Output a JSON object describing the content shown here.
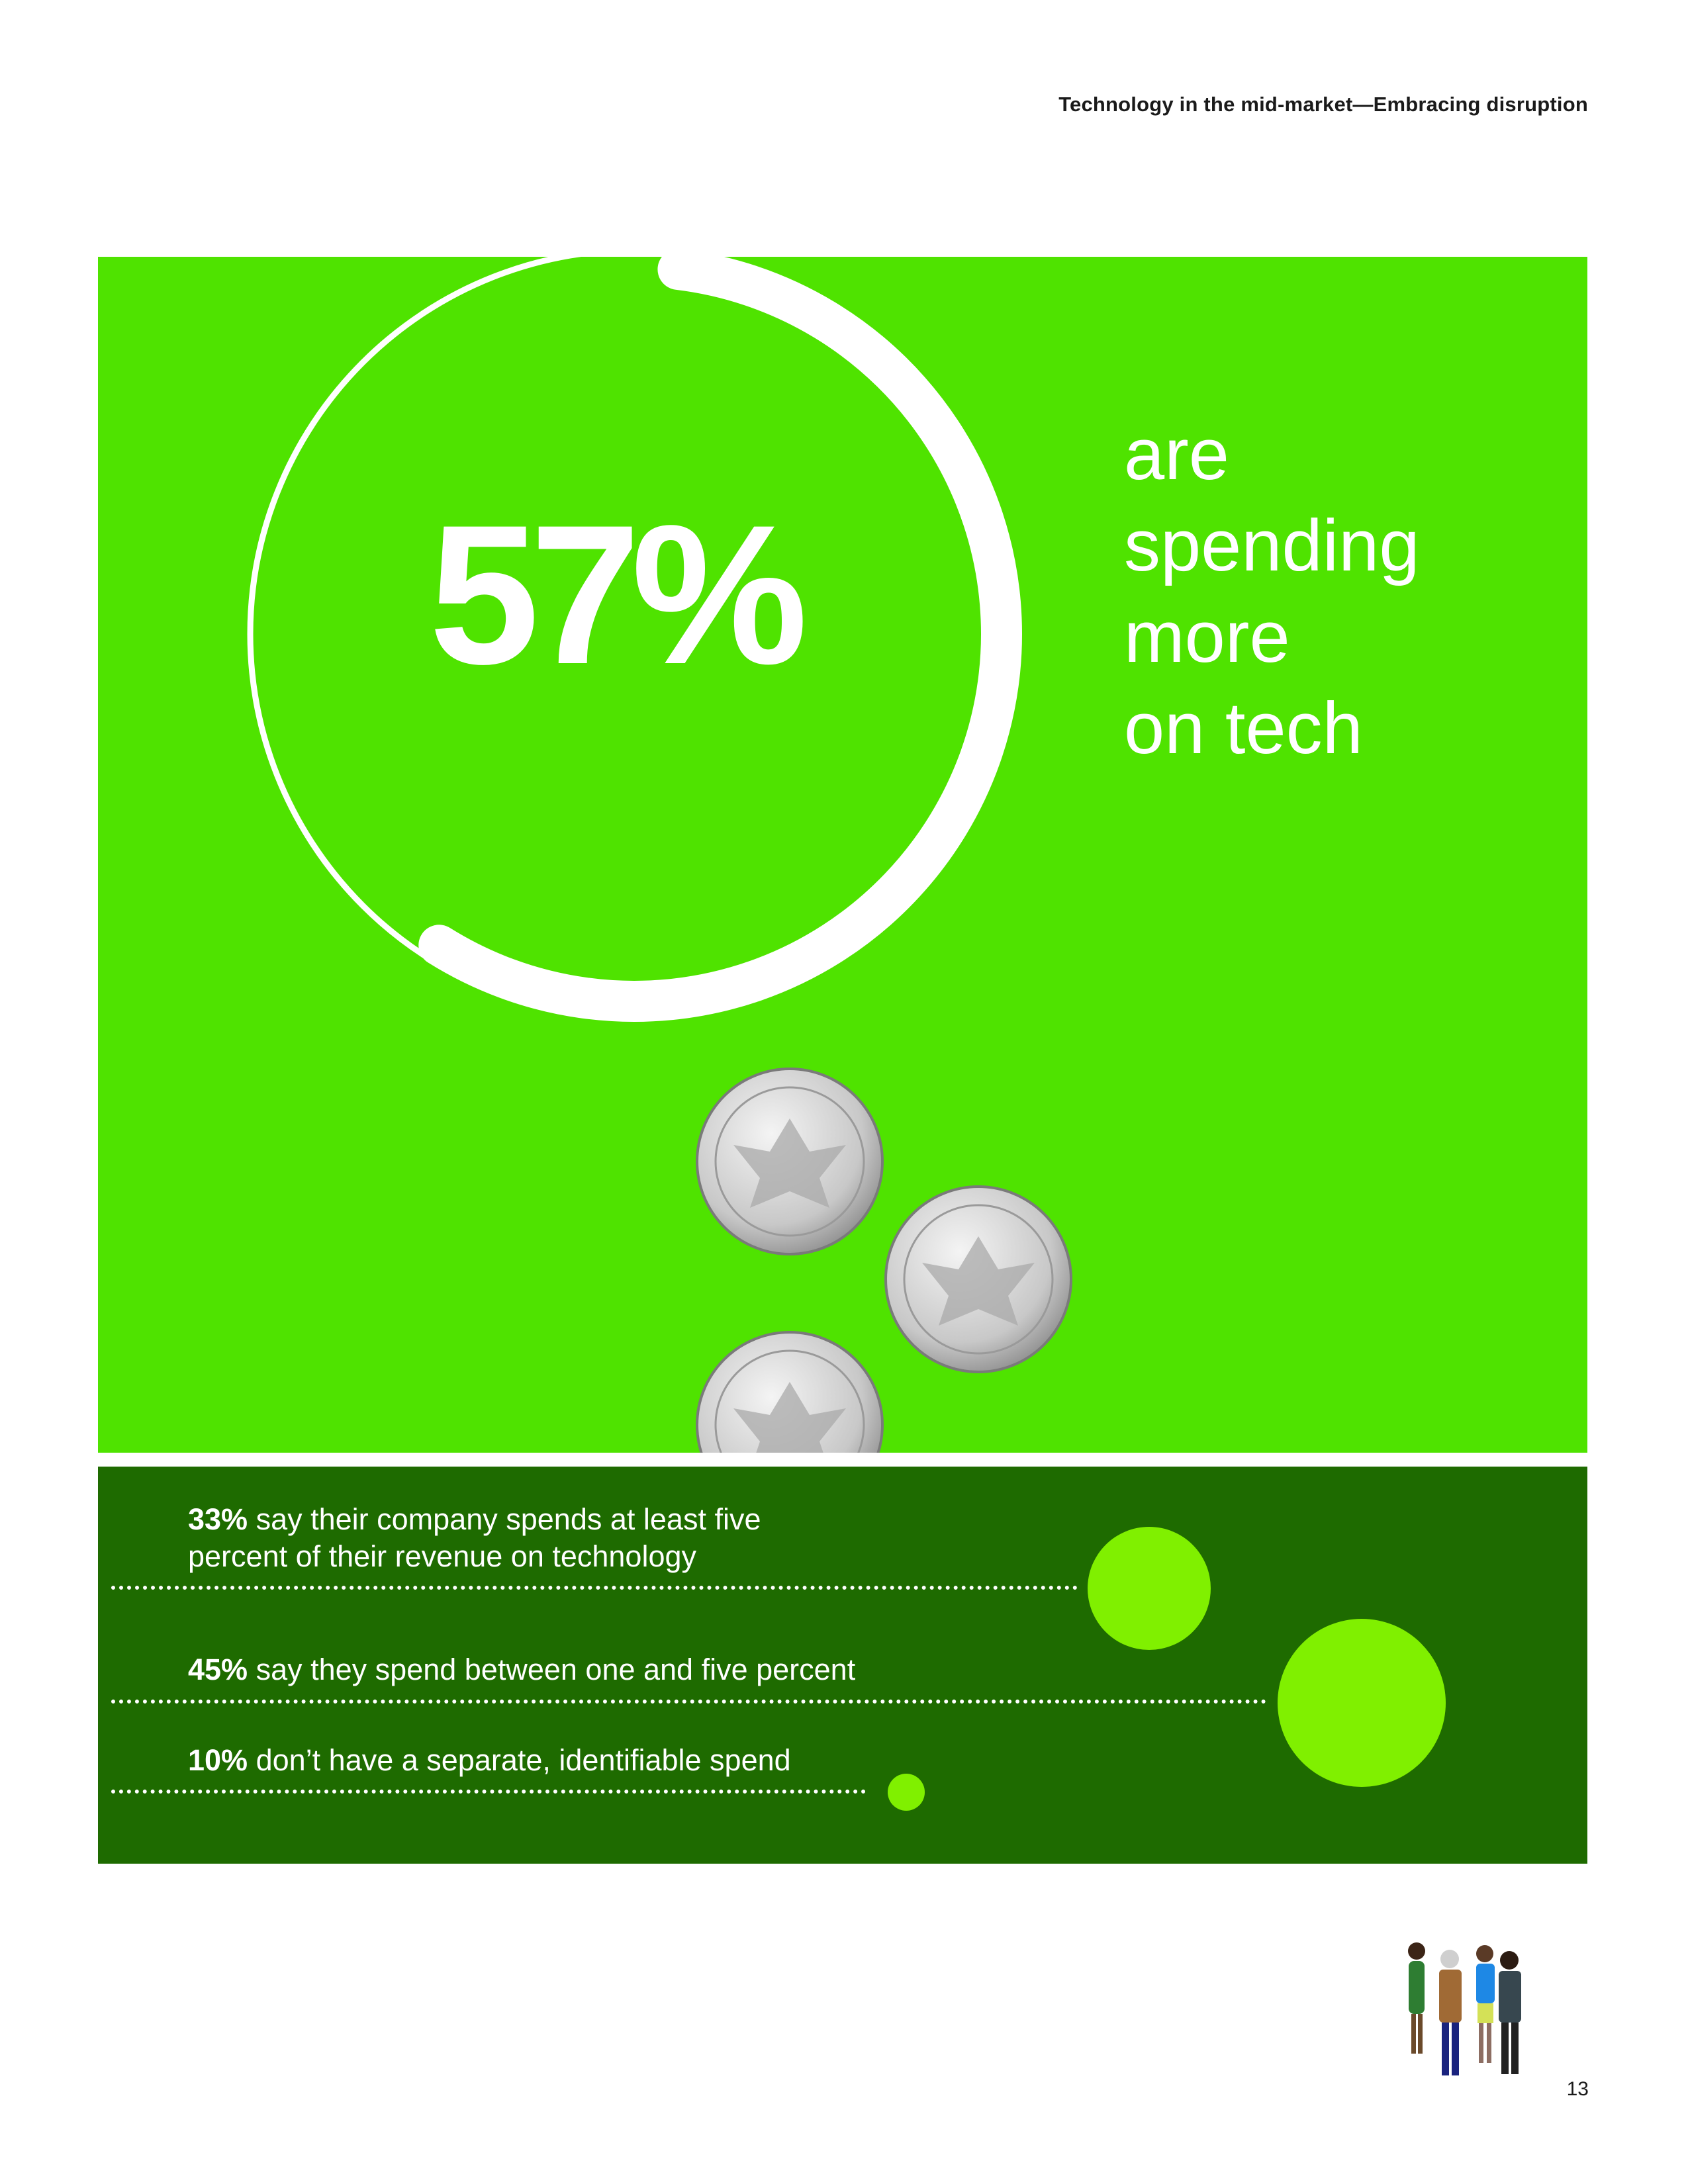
{
  "header": {
    "title": "Technology in the mid-market—Embracing disruption"
  },
  "hero": {
    "percent": "57%",
    "statement_lines": [
      "are",
      "spending",
      "more",
      "on tech"
    ],
    "percent_value": 57
  },
  "breakdown": [
    {
      "value": "33%",
      "text_line1": " say their company spends at least five",
      "text_line2": "percent of their revenue on technology"
    },
    {
      "value": "45%",
      "text_line1": " say they spend between one and five percent"
    },
    {
      "value": "10%",
      "text_line1": " don’t have a separate, identifiable spend"
    }
  ],
  "colors": {
    "bright_green": "#4fe300",
    "dark_green": "#1e6b00",
    "bubble_green": "#80f000"
  },
  "icons": [
    "coin-icon",
    "people-illustration"
  ],
  "page": {
    "number": "13"
  }
}
